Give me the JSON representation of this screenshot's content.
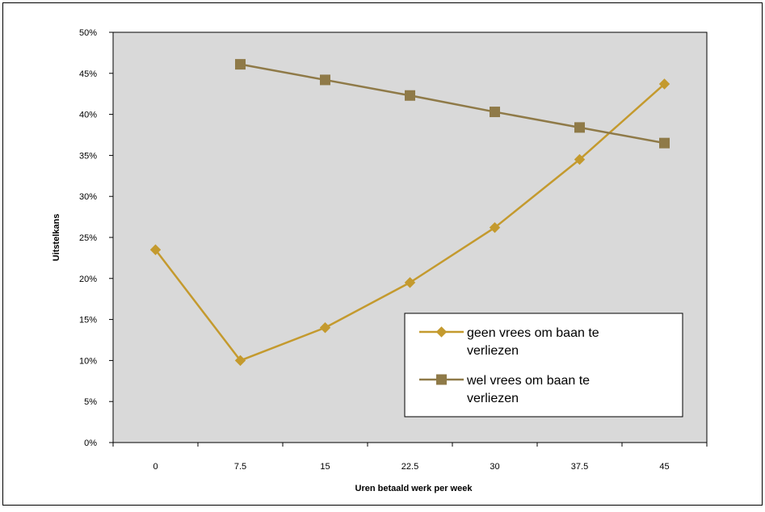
{
  "chart_data": {
    "type": "line",
    "title": "",
    "xlabel": "Uren betaald werk per week",
    "ylabel": "Uitstelkans",
    "categories": [
      "0",
      "7.5",
      "15",
      "22.5",
      "30",
      "37.5",
      "45"
    ],
    "ylim": [
      0,
      50
    ],
    "y_ticks": [
      "0%",
      "5%",
      "10%",
      "15%",
      "20%",
      "25%",
      "30%",
      "35%",
      "40%",
      "45%",
      "50%"
    ],
    "grid": false,
    "legend_position": "bottom-right",
    "series": [
      {
        "name": "geen vrees om baan te verliezen",
        "name_lines": [
          "geen vrees om baan te",
          "verliezen"
        ],
        "marker": "diamond",
        "color": "#C49A2E",
        "values": [
          23.5,
          10.0,
          14.0,
          19.5,
          26.2,
          34.5,
          43.7
        ]
      },
      {
        "name": "wel vrees om baan te verliezen",
        "name_lines": [
          "wel vrees om baan te",
          "verliezen"
        ],
        "marker": "square",
        "color": "#8F7A48",
        "values": [
          null,
          46.1,
          44.2,
          42.3,
          40.3,
          38.4,
          36.5
        ]
      }
    ],
    "colors": {
      "plot_background": "#D9D9D9",
      "frame": "#000000"
    }
  }
}
